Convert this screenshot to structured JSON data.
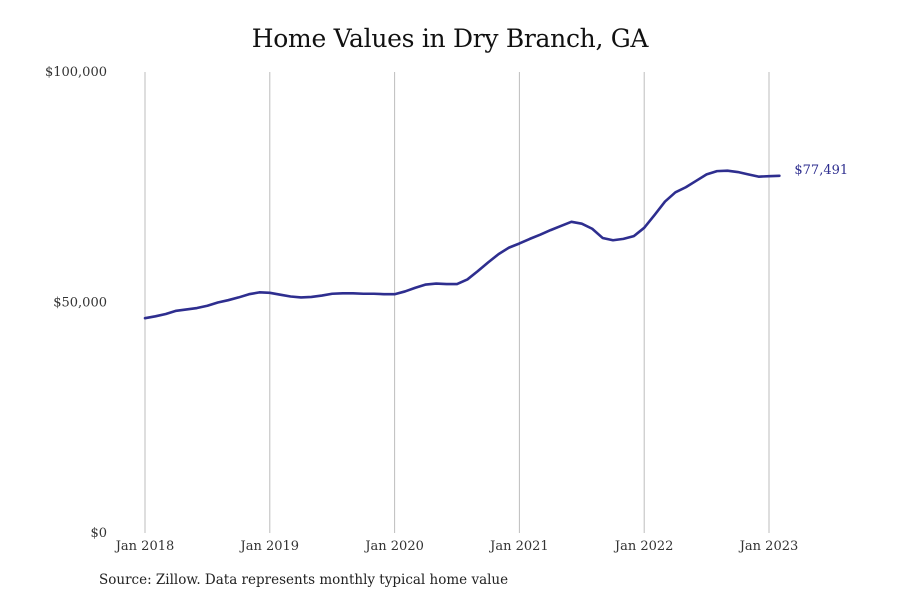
{
  "chart_data": {
    "type": "line",
    "title": "Home Values in Dry Branch, GA",
    "source": "Source: Zillow. Data represents monthly typical home value",
    "xlabel": "",
    "ylabel": "",
    "x_ticks": [
      "Jan 2018",
      "Jan 2019",
      "Jan 2020",
      "Jan 2021",
      "Jan 2022",
      "Jan 2023"
    ],
    "y_ticks": [
      "$0",
      "$50,000",
      "$100,000"
    ],
    "y_tick_values": [
      0,
      50000,
      100000
    ],
    "ylim": [
      0,
      100000
    ],
    "x_range": [
      "2018-01",
      "2023-02"
    ],
    "grid": "vertical lines at January of each year",
    "end_label": "$77,491",
    "series": [
      {
        "color": "#2e2e8f",
        "points": [
          [
            "2018-01",
            46600
          ],
          [
            "2018-02",
            47000
          ],
          [
            "2018-03",
            47500
          ],
          [
            "2018-04",
            48200
          ],
          [
            "2018-05",
            48500
          ],
          [
            "2018-06",
            48800
          ],
          [
            "2018-07",
            49300
          ],
          [
            "2018-08",
            50000
          ],
          [
            "2018-09",
            50500
          ],
          [
            "2018-10",
            51100
          ],
          [
            "2018-11",
            51800
          ],
          [
            "2018-12",
            52200
          ],
          [
            "2019-01",
            52100
          ],
          [
            "2019-02",
            51700
          ],
          [
            "2019-03",
            51300
          ],
          [
            "2019-04",
            51100
          ],
          [
            "2019-05",
            51200
          ],
          [
            "2019-06",
            51500
          ],
          [
            "2019-07",
            51900
          ],
          [
            "2019-08",
            52000
          ],
          [
            "2019-09",
            52000
          ],
          [
            "2019-10",
            51900
          ],
          [
            "2019-11",
            51900
          ],
          [
            "2019-12",
            51800
          ],
          [
            "2020-01",
            51800
          ],
          [
            "2020-02",
            52400
          ],
          [
            "2020-03",
            53200
          ],
          [
            "2020-04",
            53900
          ],
          [
            "2020-05",
            54100
          ],
          [
            "2020-06",
            54000
          ],
          [
            "2020-07",
            54000
          ],
          [
            "2020-08",
            55000
          ],
          [
            "2020-09",
            56800
          ],
          [
            "2020-10",
            58700
          ],
          [
            "2020-11",
            60500
          ],
          [
            "2020-12",
            61900
          ],
          [
            "2021-01",
            62800
          ],
          [
            "2021-02",
            63800
          ],
          [
            "2021-03",
            64700
          ],
          [
            "2021-04",
            65700
          ],
          [
            "2021-05",
            66600
          ],
          [
            "2021-06",
            67500
          ],
          [
            "2021-07",
            67100
          ],
          [
            "2021-08",
            66000
          ],
          [
            "2021-09",
            64000
          ],
          [
            "2021-10",
            63500
          ],
          [
            "2021-11",
            63800
          ],
          [
            "2021-12",
            64400
          ],
          [
            "2022-01",
            66200
          ],
          [
            "2022-02",
            69000
          ],
          [
            "2022-03",
            71900
          ],
          [
            "2022-04",
            73900
          ],
          [
            "2022-05",
            75000
          ],
          [
            "2022-06",
            76400
          ],
          [
            "2022-07",
            77800
          ],
          [
            "2022-08",
            78500
          ],
          [
            "2022-09",
            78600
          ],
          [
            "2022-10",
            78300
          ],
          [
            "2022-11",
            77800
          ],
          [
            "2022-12",
            77300
          ],
          [
            "2023-01",
            77400
          ],
          [
            "2023-02",
            77491
          ]
        ]
      }
    ]
  }
}
